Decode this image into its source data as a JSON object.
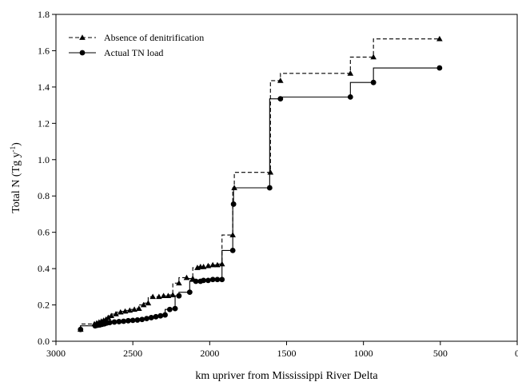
{
  "chart_data": {
    "type": "line",
    "title": "",
    "xlabel": "km upriver from Mississippi River Delta",
    "ylabel": "Total N (Tg y-1)",
    "ylabel_parts": {
      "base": "Total N (Tg y",
      "sup": "-1",
      "close": ")"
    },
    "xlim": [
      3000,
      0
    ],
    "ylim": [
      0.0,
      1.8
    ],
    "xticks": [
      3000,
      2500,
      2000,
      1500,
      1000,
      500,
      0
    ],
    "xtick_labels": [
      "3000",
      "2500",
      "2000",
      "1500",
      "1000",
      "500",
      "0"
    ],
    "yticks": [
      0.0,
      0.2,
      0.4,
      0.6,
      0.8,
      1.0,
      1.2,
      1.4,
      1.6,
      1.8
    ],
    "ytick_labels": [
      "0.0",
      "0.2",
      "0.4",
      "0.6",
      "0.8",
      "1.0",
      "1.2",
      "1.4",
      "1.6",
      "1.8"
    ],
    "grid": false,
    "legend_position": "top-left",
    "step": true,
    "series": [
      {
        "name": "Absence of denitrification",
        "marker": "triangle",
        "line_style": "dashed",
        "color": "#000000",
        "x": [
          2840,
          2750,
          2735,
          2720,
          2705,
          2690,
          2675,
          2660,
          2640,
          2610,
          2580,
          2550,
          2520,
          2490,
          2460,
          2430,
          2400,
          2370,
          2330,
          2300,
          2270,
          2240,
          2200,
          2150,
          2110,
          2080,
          2060,
          2040,
          2010,
          1980,
          1950,
          1920,
          1850,
          1840,
          1605,
          1540,
          1085,
          935,
          505
        ],
        "y": [
          0.065,
          0.095,
          0.1,
          0.105,
          0.11,
          0.115,
          0.12,
          0.13,
          0.14,
          0.15,
          0.16,
          0.165,
          0.17,
          0.175,
          0.18,
          0.2,
          0.21,
          0.245,
          0.245,
          0.25,
          0.25,
          0.255,
          0.32,
          0.35,
          0.345,
          0.405,
          0.41,
          0.41,
          0.415,
          0.42,
          0.42,
          0.425,
          0.585,
          0.845,
          0.93,
          1.435,
          1.475,
          1.565,
          1.665
        ]
      },
      {
        "name": "Actual TN load",
        "marker": "circle",
        "line_style": "solid",
        "color": "#000000",
        "x": [
          2840,
          2745,
          2730,
          2715,
          2700,
          2685,
          2670,
          2650,
          2620,
          2590,
          2560,
          2530,
          2500,
          2470,
          2440,
          2410,
          2380,
          2350,
          2320,
          2290,
          2260,
          2225,
          2200,
          2130,
          2090,
          2060,
          2040,
          2010,
          1980,
          1950,
          1920,
          1850,
          1845,
          1610,
          1540,
          1085,
          935,
          505
        ],
        "y": [
          0.065,
          0.085,
          0.088,
          0.09,
          0.093,
          0.096,
          0.1,
          0.103,
          0.106,
          0.108,
          0.11,
          0.113,
          0.115,
          0.117,
          0.12,
          0.125,
          0.13,
          0.135,
          0.14,
          0.145,
          0.175,
          0.18,
          0.25,
          0.27,
          0.33,
          0.33,
          0.335,
          0.335,
          0.34,
          0.34,
          0.34,
          0.5,
          0.755,
          0.845,
          1.335,
          1.345,
          1.425,
          1.505
        ]
      }
    ]
  }
}
